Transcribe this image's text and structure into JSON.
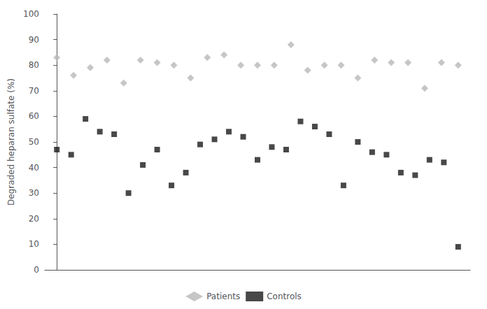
{
  "chart_data": {
    "type": "scatter",
    "ylabel": "Degraded heparan sulfate (%)",
    "series": [
      {
        "name": "Patients",
        "color": "#b8b8b8",
        "marker": "diamond",
        "values": [
          83,
          76,
          79,
          82,
          73,
          82,
          81,
          80,
          75,
          83,
          84,
          80,
          80,
          80,
          88,
          78,
          80,
          80,
          75,
          82,
          81,
          81,
          71,
          81,
          80
        ]
      },
      {
        "name": "Controls",
        "color": "#1a1a1a",
        "marker": "square",
        "values": [
          47,
          45,
          59,
          54,
          53,
          30,
          41,
          47,
          33,
          38,
          49,
          51,
          54,
          52,
          43,
          48,
          47,
          58,
          56,
          53,
          33,
          50,
          46,
          45,
          38,
          37,
          43,
          42,
          9
        ]
      }
    ],
    "ylim": [
      0,
      100
    ],
    "yticks": [
      0,
      10,
      20,
      30,
      40,
      50,
      60,
      70,
      80,
      90,
      100
    ],
    "grid": false,
    "legend": "bottom",
    "tick_labels": "y"
  }
}
